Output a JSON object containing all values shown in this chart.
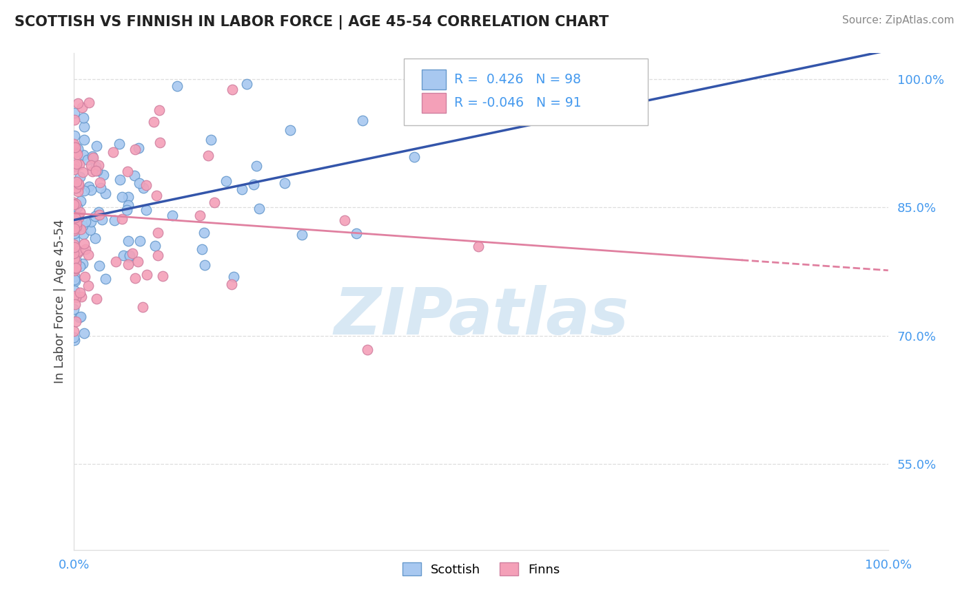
{
  "title": "SCOTTISH VS FINNISH IN LABOR FORCE | AGE 45-54 CORRELATION CHART",
  "source": "Source: ZipAtlas.com",
  "ylabel": "In Labor Force | Age 45-54",
  "xlim": [
    0.0,
    1.0
  ],
  "ylim": [
    0.45,
    1.03
  ],
  "xtick_positions": [
    0.0,
    0.25,
    0.5,
    0.75,
    1.0
  ],
  "xticklabels": [
    "0.0%",
    "",
    "",
    "",
    "100.0%"
  ],
  "ytick_positions": [
    0.55,
    0.7,
    0.85,
    1.0
  ],
  "ytick_labels": [
    "55.0%",
    "70.0%",
    "85.0%",
    "100.0%"
  ],
  "scottish_R": 0.426,
  "scottish_N": 98,
  "finns_R": -0.046,
  "finns_N": 91,
  "scottish_color": "#a8c8f0",
  "scots_edge_color": "#6699cc",
  "finns_color": "#f4a0b8",
  "finns_edge_color": "#d080a0",
  "scottish_line_color": "#3355aa",
  "finns_line_color": "#e080a0",
  "background_color": "#ffffff",
  "watermark_text": "ZIPatlas",
  "watermark_color": "#d8e8f4",
  "grid_color": "#dddddd",
  "tick_label_color": "#4499ee",
  "title_color": "#222222",
  "source_color": "#888888"
}
